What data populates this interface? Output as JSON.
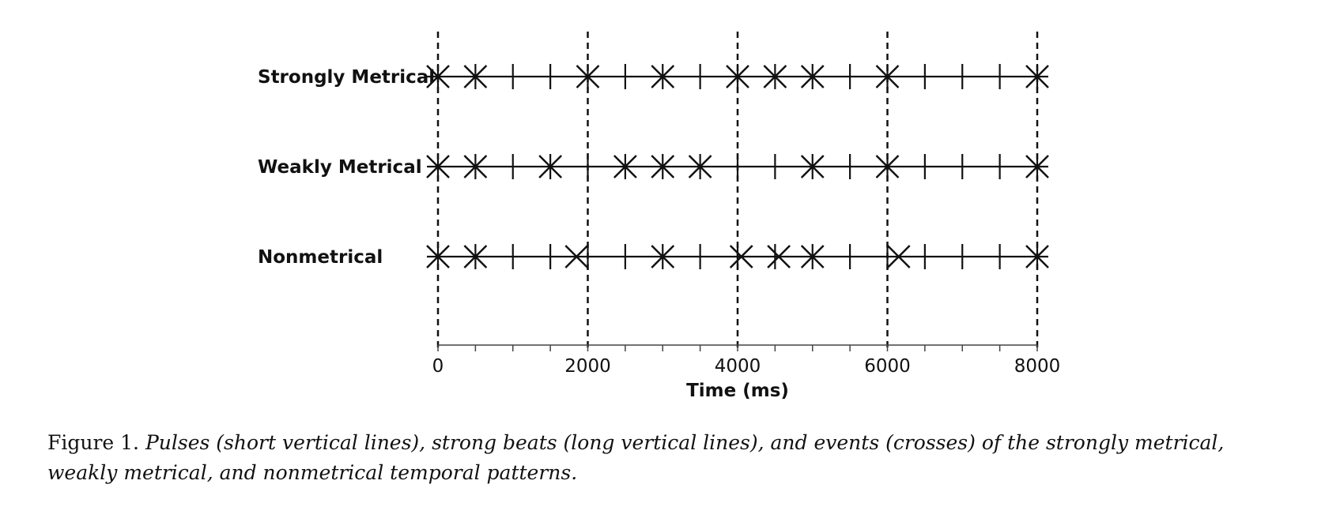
{
  "diagram": {
    "time_range_ms": [
      0,
      8000
    ],
    "strong_beats_ms": [
      0,
      2000,
      4000,
      6000,
      8000
    ],
    "pulses_ms": [
      0,
      500,
      1000,
      1500,
      2000,
      2500,
      3000,
      3500,
      4000,
      4500,
      5000,
      5500,
      6000,
      6500,
      7000,
      7500,
      8000
    ],
    "rows": [
      {
        "label": "Strongly Metrical",
        "events_ms": [
          0,
          500,
          2000,
          3000,
          4000,
          4500,
          5000,
          6000,
          8000
        ]
      },
      {
        "label": "Weakly Metrical",
        "events_ms": [
          0,
          500,
          1500,
          2500,
          3000,
          3500,
          5000,
          6000,
          8000
        ]
      },
      {
        "label": "Nonmetrical",
        "events_ms": [
          0,
          500,
          1850,
          3000,
          4050,
          4550,
          5000,
          6150,
          8000
        ]
      }
    ],
    "axis": {
      "tick_labels": [
        "0",
        "2000",
        "4000",
        "6000",
        "8000"
      ],
      "label": "Time (ms)"
    },
    "line_color": "#111111"
  },
  "caption": {
    "label": "Figure 1.",
    "text": "Pulses (short vertical lines), strong beats (long vertical lines), and events (crosses) of the strongly metrical, weakly metrical, and nonmetrical temporal patterns."
  }
}
